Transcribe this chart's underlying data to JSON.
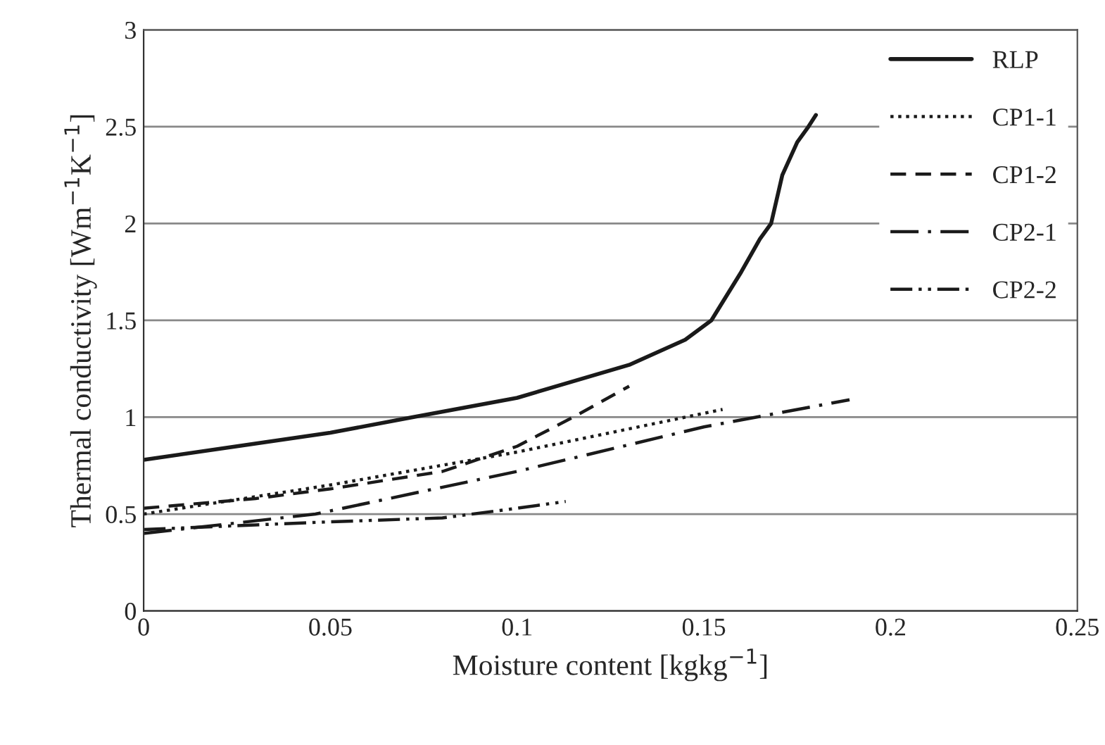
{
  "chart_data": {
    "type": "line",
    "xlabel": "Moisture content [kgkg$^{−1}$]",
    "ylabel": "Thermal conductivity [Wm$^{−1}$K$^{−1}$]",
    "xlim": [
      0,
      0.25
    ],
    "xticks": [
      0,
      0.05,
      0.1,
      0.15,
      0.2,
      0.25
    ],
    "ylim": [
      0,
      3
    ],
    "yticks": [
      0,
      0.5,
      1,
      1.5,
      2,
      2.5,
      3
    ],
    "grid": "y",
    "legend": "top right",
    "series": [
      {
        "name": "RLP",
        "color": "#1a1a1a",
        "line_style": "solid",
        "x": [
          0,
          0.025,
          0.05,
          0.072,
          0.1,
          0.13,
          0.145,
          0.152,
          0.16,
          0.165,
          0.168,
          0.171,
          0.175,
          0.178,
          0.18
        ],
        "values": [
          0.78,
          0.85,
          0.92,
          1.0,
          1.1,
          1.27,
          1.4,
          1.5,
          1.75,
          1.92,
          2.0,
          2.25,
          2.42,
          2.5,
          2.56
        ]
      },
      {
        "name": "CP1-1",
        "color": "#1a1a1a",
        "line_style": "dotted",
        "x": [
          0,
          0.05,
          0.1,
          0.155
        ],
        "values": [
          0.5,
          0.65,
          0.82,
          1.04
        ]
      },
      {
        "name": "CP1-2",
        "color": "#1a1a1a",
        "line_style": "dashed",
        "x": [
          0,
          0.03,
          0.05,
          0.08,
          0.1,
          0.115,
          0.13
        ],
        "values": [
          0.53,
          0.58,
          0.63,
          0.72,
          0.85,
          1.0,
          1.16
        ]
      },
      {
        "name": "CP2-1",
        "color": "#1a1a1a",
        "line_style": "dashdot",
        "x": [
          0,
          0.046,
          0.1,
          0.15,
          0.189
        ],
        "values": [
          0.4,
          0.5,
          0.72,
          0.95,
          1.09
        ]
      },
      {
        "name": "CP2-2",
        "color": "#1a1a1a",
        "line_style": "dashdotdot",
        "x": [
          0,
          0.05,
          0.08,
          0.1,
          0.113
        ],
        "values": [
          0.42,
          0.46,
          0.48,
          0.53,
          0.565
        ]
      }
    ]
  }
}
